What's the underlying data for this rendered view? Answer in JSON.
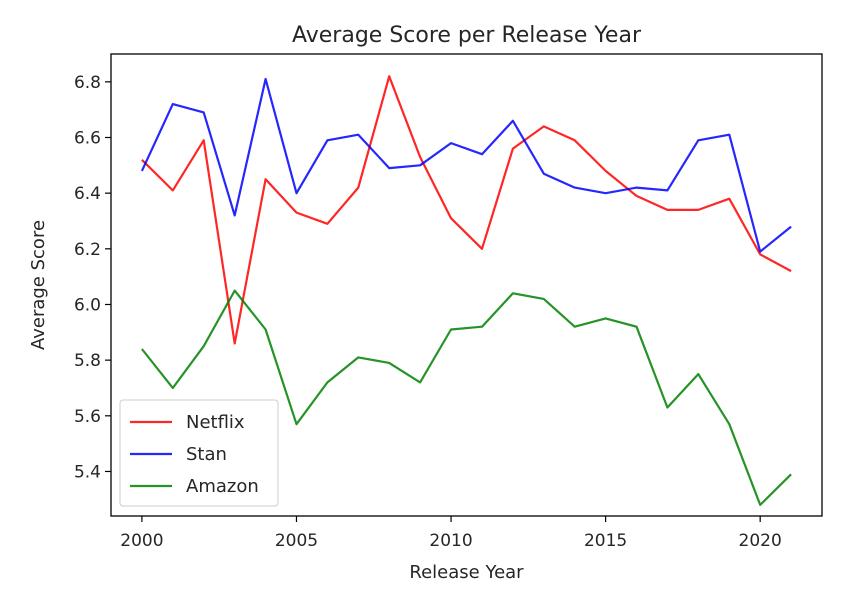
{
  "chart_data": {
    "type": "line",
    "title": "Average Score per Release Year",
    "xlabel": "Release Year",
    "ylabel": "Average Score",
    "xlim": [
      1999,
      2022
    ],
    "ylim": [
      5.24,
      6.9
    ],
    "xticks": [
      2000,
      2005,
      2010,
      2015,
      2020
    ],
    "xtick_labels": [
      "2000",
      "2005",
      "2010",
      "2015",
      "2020"
    ],
    "yticks": [
      5.4,
      5.6,
      5.8,
      6.0,
      6.2,
      6.4,
      6.6,
      6.8
    ],
    "ytick_labels": [
      "5.4",
      "5.6",
      "5.8",
      "6.0",
      "6.2",
      "6.4",
      "6.6",
      "6.8"
    ],
    "grid": false,
    "legend": {
      "placement": "lower-left"
    },
    "x": [
      2000,
      2001,
      2002,
      2003,
      2004,
      2005,
      2006,
      2007,
      2008,
      2009,
      2010,
      2011,
      2012,
      2013,
      2014,
      2015,
      2016,
      2017,
      2018,
      2019,
      2020,
      2021
    ],
    "series": [
      {
        "name": "Netflix",
        "color": "#ff0000",
        "values": [
          6.52,
          6.41,
          6.59,
          5.86,
          6.45,
          6.33,
          6.29,
          6.42,
          6.82,
          6.53,
          6.31,
          6.2,
          6.56,
          6.64,
          6.59,
          6.48,
          6.39,
          6.34,
          6.34,
          6.38,
          6.18,
          6.12
        ]
      },
      {
        "name": "Stan",
        "color": "#0000ff",
        "values": [
          6.48,
          6.72,
          6.69,
          6.32,
          6.81,
          6.4,
          6.59,
          6.61,
          6.49,
          6.5,
          6.58,
          6.54,
          6.66,
          6.47,
          6.42,
          6.4,
          6.42,
          6.41,
          6.59,
          6.61,
          6.19,
          6.28
        ]
      },
      {
        "name": "Amazon",
        "color": "#008000",
        "values": [
          5.84,
          5.7,
          5.85,
          6.05,
          5.91,
          5.57,
          5.72,
          5.81,
          5.79,
          5.72,
          5.91,
          5.92,
          6.04,
          6.02,
          5.92,
          5.95,
          5.92,
          5.63,
          5.75,
          5.57,
          5.28,
          5.39
        ]
      }
    ]
  }
}
